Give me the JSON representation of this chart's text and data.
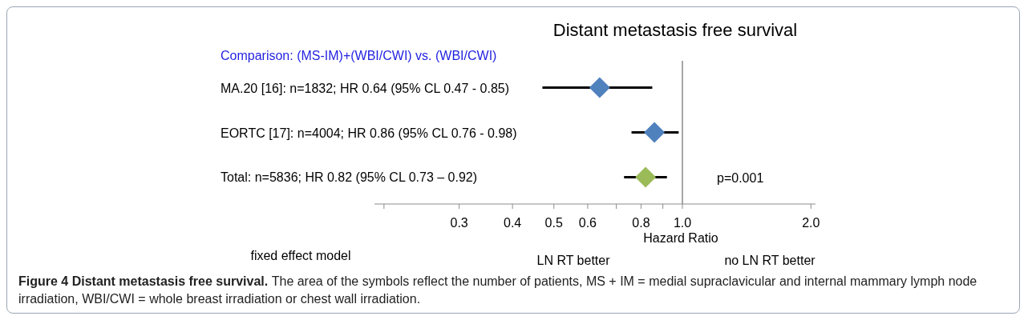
{
  "chart_data": {
    "type": "scatter",
    "title": "Distant metastasis free survival",
    "subtitle": "Comparison: (MS-IM)+(WBI/CWI) vs. (WBI/CWI)",
    "xlabel": "Hazard Ratio",
    "categories": [
      "MA.20 [16]: n=1832; HR 0.64 (95% CL 0.47 - 0.85)",
      "EORTC [17]: n=4004; HR 0.86 (95% CL 0.76 - 0.98)",
      "Total: n=5836; HR 0.82 (95% CL 0.73 – 0.92)"
    ],
    "orientation": "horizontal",
    "values": [
      0.64,
      0.86,
      0.82
    ],
    "errors": [
      [
        0.47,
        0.85
      ],
      [
        0.76,
        0.98
      ],
      [
        0.73,
        0.92
      ]
    ],
    "colors": [
      "#4f81bd",
      "#4f81bd",
      "#9bbb59"
    ],
    "marker": "diamond",
    "log": "x",
    "xlim": [
      0.19,
      2.05
    ],
    "xticks": [
      {
        "value": 0.2,
        "label": null
      },
      0.3,
      0.4,
      0.5,
      0.6,
      {
        "value": 0.7,
        "label": null
      },
      0.8,
      {
        "value": 0.9,
        "label": null
      },
      {
        "value": 1,
        "label": "1.0"
      },
      {
        "value": 2,
        "label": "2.0"
      }
    ],
    "ref_lines": [
      {
        "axis": "x",
        "value": 1,
        "color": "#a6a6a6"
      }
    ],
    "annotations": [
      "p=0.001",
      "fixed effect model",
      "LN RT better",
      "no LN RT better",
      "Figure 4 Distant metastasis free survival.",
      "The area of the symbols reflect the number of patients, MS + IM = medial supraclavicular and internal mammary lymph node irradiation, WBI/CWI = whole breast irradiation or chest wall irradiation."
    ]
  }
}
